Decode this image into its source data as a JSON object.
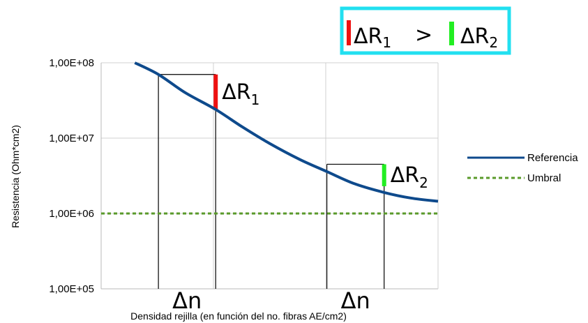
{
  "chart_data": {
    "type": "line",
    "title": "",
    "xlabel": "Densidad rejilla (en función del no. fibras AE/cm2)",
    "ylabel": "Resistencia (Ohm*cm2)",
    "y_scale": "log",
    "ylim": [
      100000,
      100000000
    ],
    "yticks": [
      "1,00E+05",
      "1,00E+06",
      "1,00E+07",
      "1,00E+08"
    ],
    "ytick_values": [
      100000,
      1000000,
      10000000,
      100000000
    ],
    "xlim": [
      0,
      1
    ],
    "grid": true,
    "legend_position": "right",
    "series": [
      {
        "name": "Referencia",
        "color": "#0e4a8c",
        "style": "solid",
        "x": [
          0.1,
          0.17,
          0.25,
          0.34,
          0.42,
          0.5,
          0.59,
          0.67,
          0.75,
          0.84,
          0.92,
          1.0
        ],
        "y": [
          100000000,
          70000000,
          40000000,
          24000000,
          14000000,
          8500000,
          5200000,
          3600000,
          2500000,
          1900000,
          1600000,
          1450000
        ]
      },
      {
        "name": "Umbral",
        "color": "#5a9a2a",
        "style": "dashed",
        "x": [
          0.0,
          1.0
        ],
        "y": [
          1000000,
          1000000
        ]
      }
    ],
    "annotations": {
      "box": {
        "left": "ΔR",
        "left_sub": "1",
        "operator": ">",
        "right": "ΔR",
        "right_sub": "2",
        "border_color": "#22e0f0",
        "left_bar_color": "#ee1111",
        "right_bar_color": "#22ee22"
      },
      "step1": {
        "x0": 0.17,
        "x1": 0.34,
        "y_top": 70000000,
        "y_bottom": 24000000,
        "label": "ΔR",
        "sub": "1",
        "bar_color": "#ee1111",
        "dx_label": "Δn"
      },
      "step2": {
        "x0": 0.67,
        "x1": 0.84,
        "y_top": 4500000,
        "y_bottom": 2300000,
        "label": "ΔR",
        "sub": "2",
        "bar_color": "#22ee22",
        "dx_label": "Δn"
      }
    }
  }
}
